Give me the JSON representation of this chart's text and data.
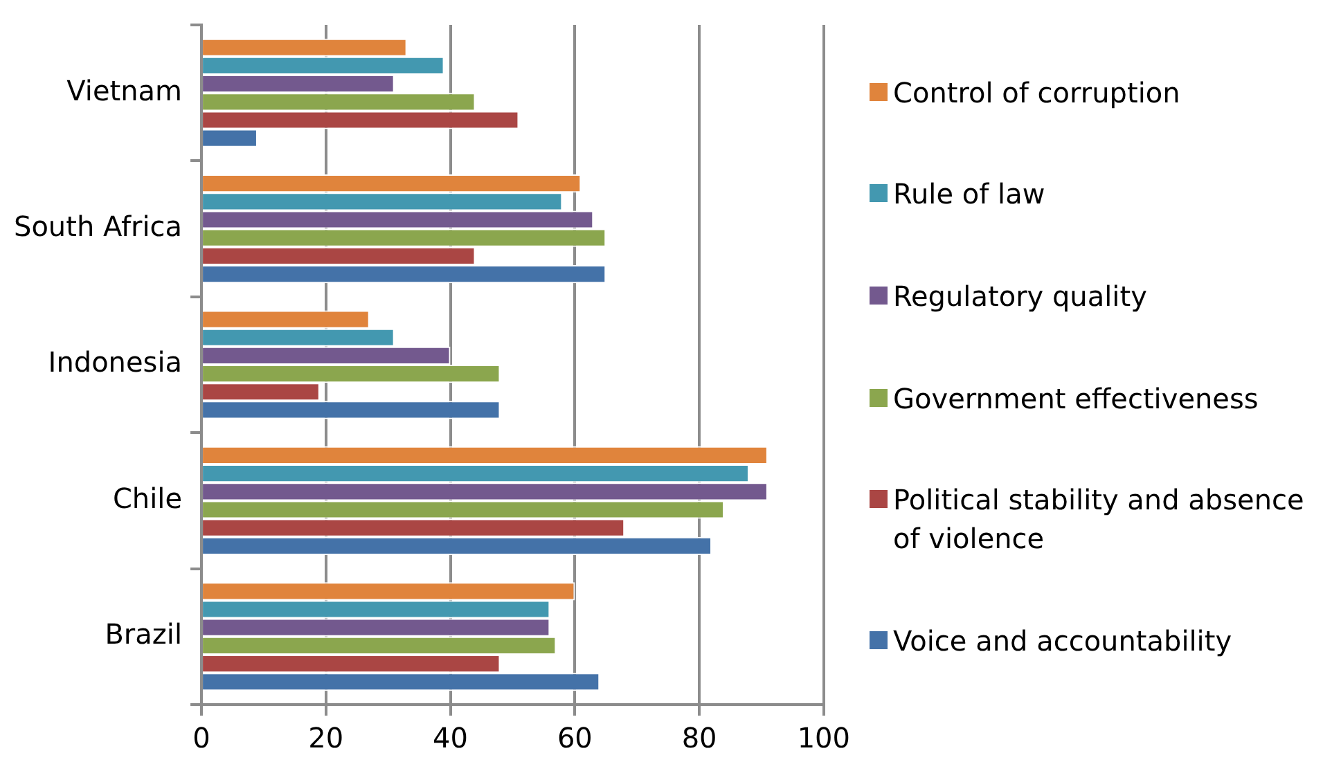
{
  "chart_data": {
    "type": "bar",
    "orientation": "horizontal",
    "categories": [
      "Vietnam",
      "South Africa",
      "Indonesia",
      "Chile",
      "Brazil"
    ],
    "series": [
      {
        "name": "Control of corruption",
        "color": "#e0843c",
        "values": [
          33,
          61,
          27,
          91,
          60
        ]
      },
      {
        "name": "Rule of law",
        "color": "#4398b0",
        "values": [
          39,
          58,
          31,
          88,
          56
        ]
      },
      {
        "name": "Regulatory quality",
        "color": "#73598e",
        "values": [
          31,
          63,
          40,
          91,
          56
        ]
      },
      {
        "name": "Government effectiveness",
        "color": "#8ba64e",
        "values": [
          44,
          65,
          48,
          84,
          57
        ]
      },
      {
        "name": "Political stability and absence of violence",
        "color": "#aa4644",
        "values": [
          51,
          44,
          19,
          68,
          48
        ]
      },
      {
        "name": "Voice and accountability",
        "color": "#4472a8",
        "values": [
          9,
          65,
          48,
          82,
          64
        ]
      }
    ],
    "xlim": [
      0,
      100
    ],
    "xticks": [
      0,
      20,
      40,
      60,
      80,
      100
    ],
    "grid": "x",
    "legend": "right"
  }
}
